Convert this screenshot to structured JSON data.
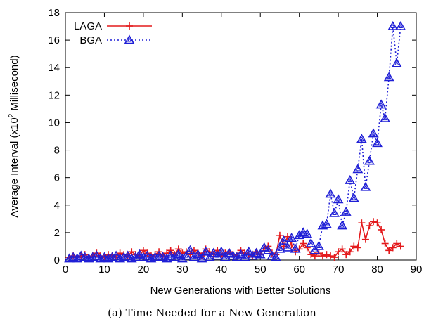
{
  "chart_data": {
    "type": "line",
    "xlabel": "New Generations with Better Solutions",
    "ylabel": "Average Interval (x10",
    "ylabel_sup": "2",
    "ylabel_suffix": " Millisecond)",
    "xlim": [
      0,
      90
    ],
    "ylim": [
      0,
      18
    ],
    "xticks": [
      0,
      10,
      20,
      30,
      40,
      50,
      60,
      70,
      80,
      90
    ],
    "yticks": [
      0,
      2,
      4,
      6,
      8,
      10,
      12,
      14,
      16,
      18
    ],
    "grid": false,
    "legend_position": "top-left",
    "series": [
      {
        "name": "LAGA",
        "color": "#e41a1c",
        "style": "solid",
        "marker": "plus",
        "x": [
          1,
          2,
          3,
          4,
          5,
          6,
          7,
          8,
          9,
          10,
          11,
          12,
          13,
          14,
          15,
          16,
          17,
          18,
          19,
          20,
          21,
          22,
          23,
          24,
          25,
          26,
          27,
          28,
          29,
          30,
          31,
          32,
          33,
          34,
          35,
          36,
          37,
          38,
          39,
          40,
          41,
          42,
          43,
          44,
          45,
          46,
          47,
          48,
          49,
          50,
          51,
          52,
          53,
          54,
          55,
          56,
          57,
          58,
          59,
          60,
          61,
          62,
          63,
          64,
          65,
          66,
          67,
          68,
          69,
          70,
          71,
          72,
          73,
          74,
          75,
          76,
          77,
          78,
          79,
          80,
          81,
          82,
          83,
          84,
          85,
          86
        ],
        "y": [
          0.2,
          0.3,
          0.2,
          0.3,
          0.4,
          0.2,
          0.3,
          0.5,
          0.3,
          0.2,
          0.4,
          0.3,
          0.2,
          0.5,
          0.4,
          0.3,
          0.6,
          0.4,
          0.3,
          0.7,
          0.5,
          0.3,
          0.4,
          0.6,
          0.3,
          0.5,
          0.7,
          0.4,
          0.8,
          0.5,
          0.6,
          0.4,
          0.7,
          0.5,
          0.3,
          0.8,
          0.6,
          0.4,
          0.7,
          0.3,
          0.5,
          0.6,
          0.4,
          0.3,
          0.7,
          0.5,
          0.4,
          0.3,
          0.6,
          0.4,
          0.8,
          1.0,
          0.5,
          0.4,
          1.8,
          1.0,
          1.7,
          1.1,
          0.6,
          0.8,
          1.2,
          0.9,
          0.4,
          0.3,
          0.5,
          0.3,
          0.4,
          0.3,
          0.2,
          0.6,
          0.8,
          0.4,
          0.6,
          1.0,
          0.9,
          2.7,
          1.5,
          2.5,
          2.8,
          2.7,
          2.2,
          1.2,
          0.7,
          0.9,
          1.2,
          1.0
        ]
      },
      {
        "name": "BGA",
        "color": "#1f1fd6",
        "style": "dotted",
        "marker": "triangle",
        "x": [
          1,
          2,
          3,
          4,
          5,
          6,
          7,
          8,
          9,
          10,
          11,
          12,
          13,
          14,
          15,
          16,
          17,
          18,
          19,
          20,
          21,
          22,
          23,
          24,
          25,
          26,
          27,
          28,
          29,
          30,
          31,
          32,
          33,
          34,
          35,
          36,
          37,
          38,
          39,
          40,
          41,
          42,
          43,
          44,
          45,
          46,
          47,
          48,
          49,
          50,
          51,
          52,
          53,
          54,
          55,
          56,
          57,
          58,
          59,
          60,
          61,
          62,
          63,
          64,
          65,
          66,
          67,
          68,
          69,
          70,
          71,
          72,
          73,
          74,
          75,
          76,
          77,
          78,
          79,
          80,
          81,
          82,
          83,
          84,
          85,
          86
        ],
        "y": [
          0.1,
          0.2,
          0.1,
          0.3,
          0.2,
          0.1,
          0.2,
          0.3,
          0.1,
          0.2,
          0.1,
          0.2,
          0.3,
          0.1,
          0.2,
          0.3,
          0.1,
          0.2,
          0.4,
          0.2,
          0.3,
          0.1,
          0.2,
          0.3,
          0.2,
          0.1,
          0.3,
          0.2,
          0.4,
          0.1,
          0.3,
          0.7,
          0.2,
          0.4,
          0.1,
          0.6,
          0.2,
          0.5,
          0.3,
          0.6,
          0.2,
          0.5,
          0.3,
          0.2,
          0.4,
          0.2,
          0.6,
          0.3,
          0.5,
          0.4,
          0.9,
          0.7,
          0.3,
          0.2,
          0.8,
          1.4,
          0.9,
          1.6,
          0.8,
          1.8,
          2.0,
          1.9,
          1.2,
          0.7,
          1.0,
          2.5,
          2.6,
          4.8,
          3.4,
          4.4,
          2.5,
          3.5,
          5.8,
          4.5,
          6.6,
          8.8,
          5.3,
          7.2,
          9.2,
          8.5,
          11.3,
          10.3,
          13.3,
          17.0,
          14.3,
          17.0
        ]
      }
    ]
  },
  "caption": "(a)  Time Needed for a New Generation"
}
